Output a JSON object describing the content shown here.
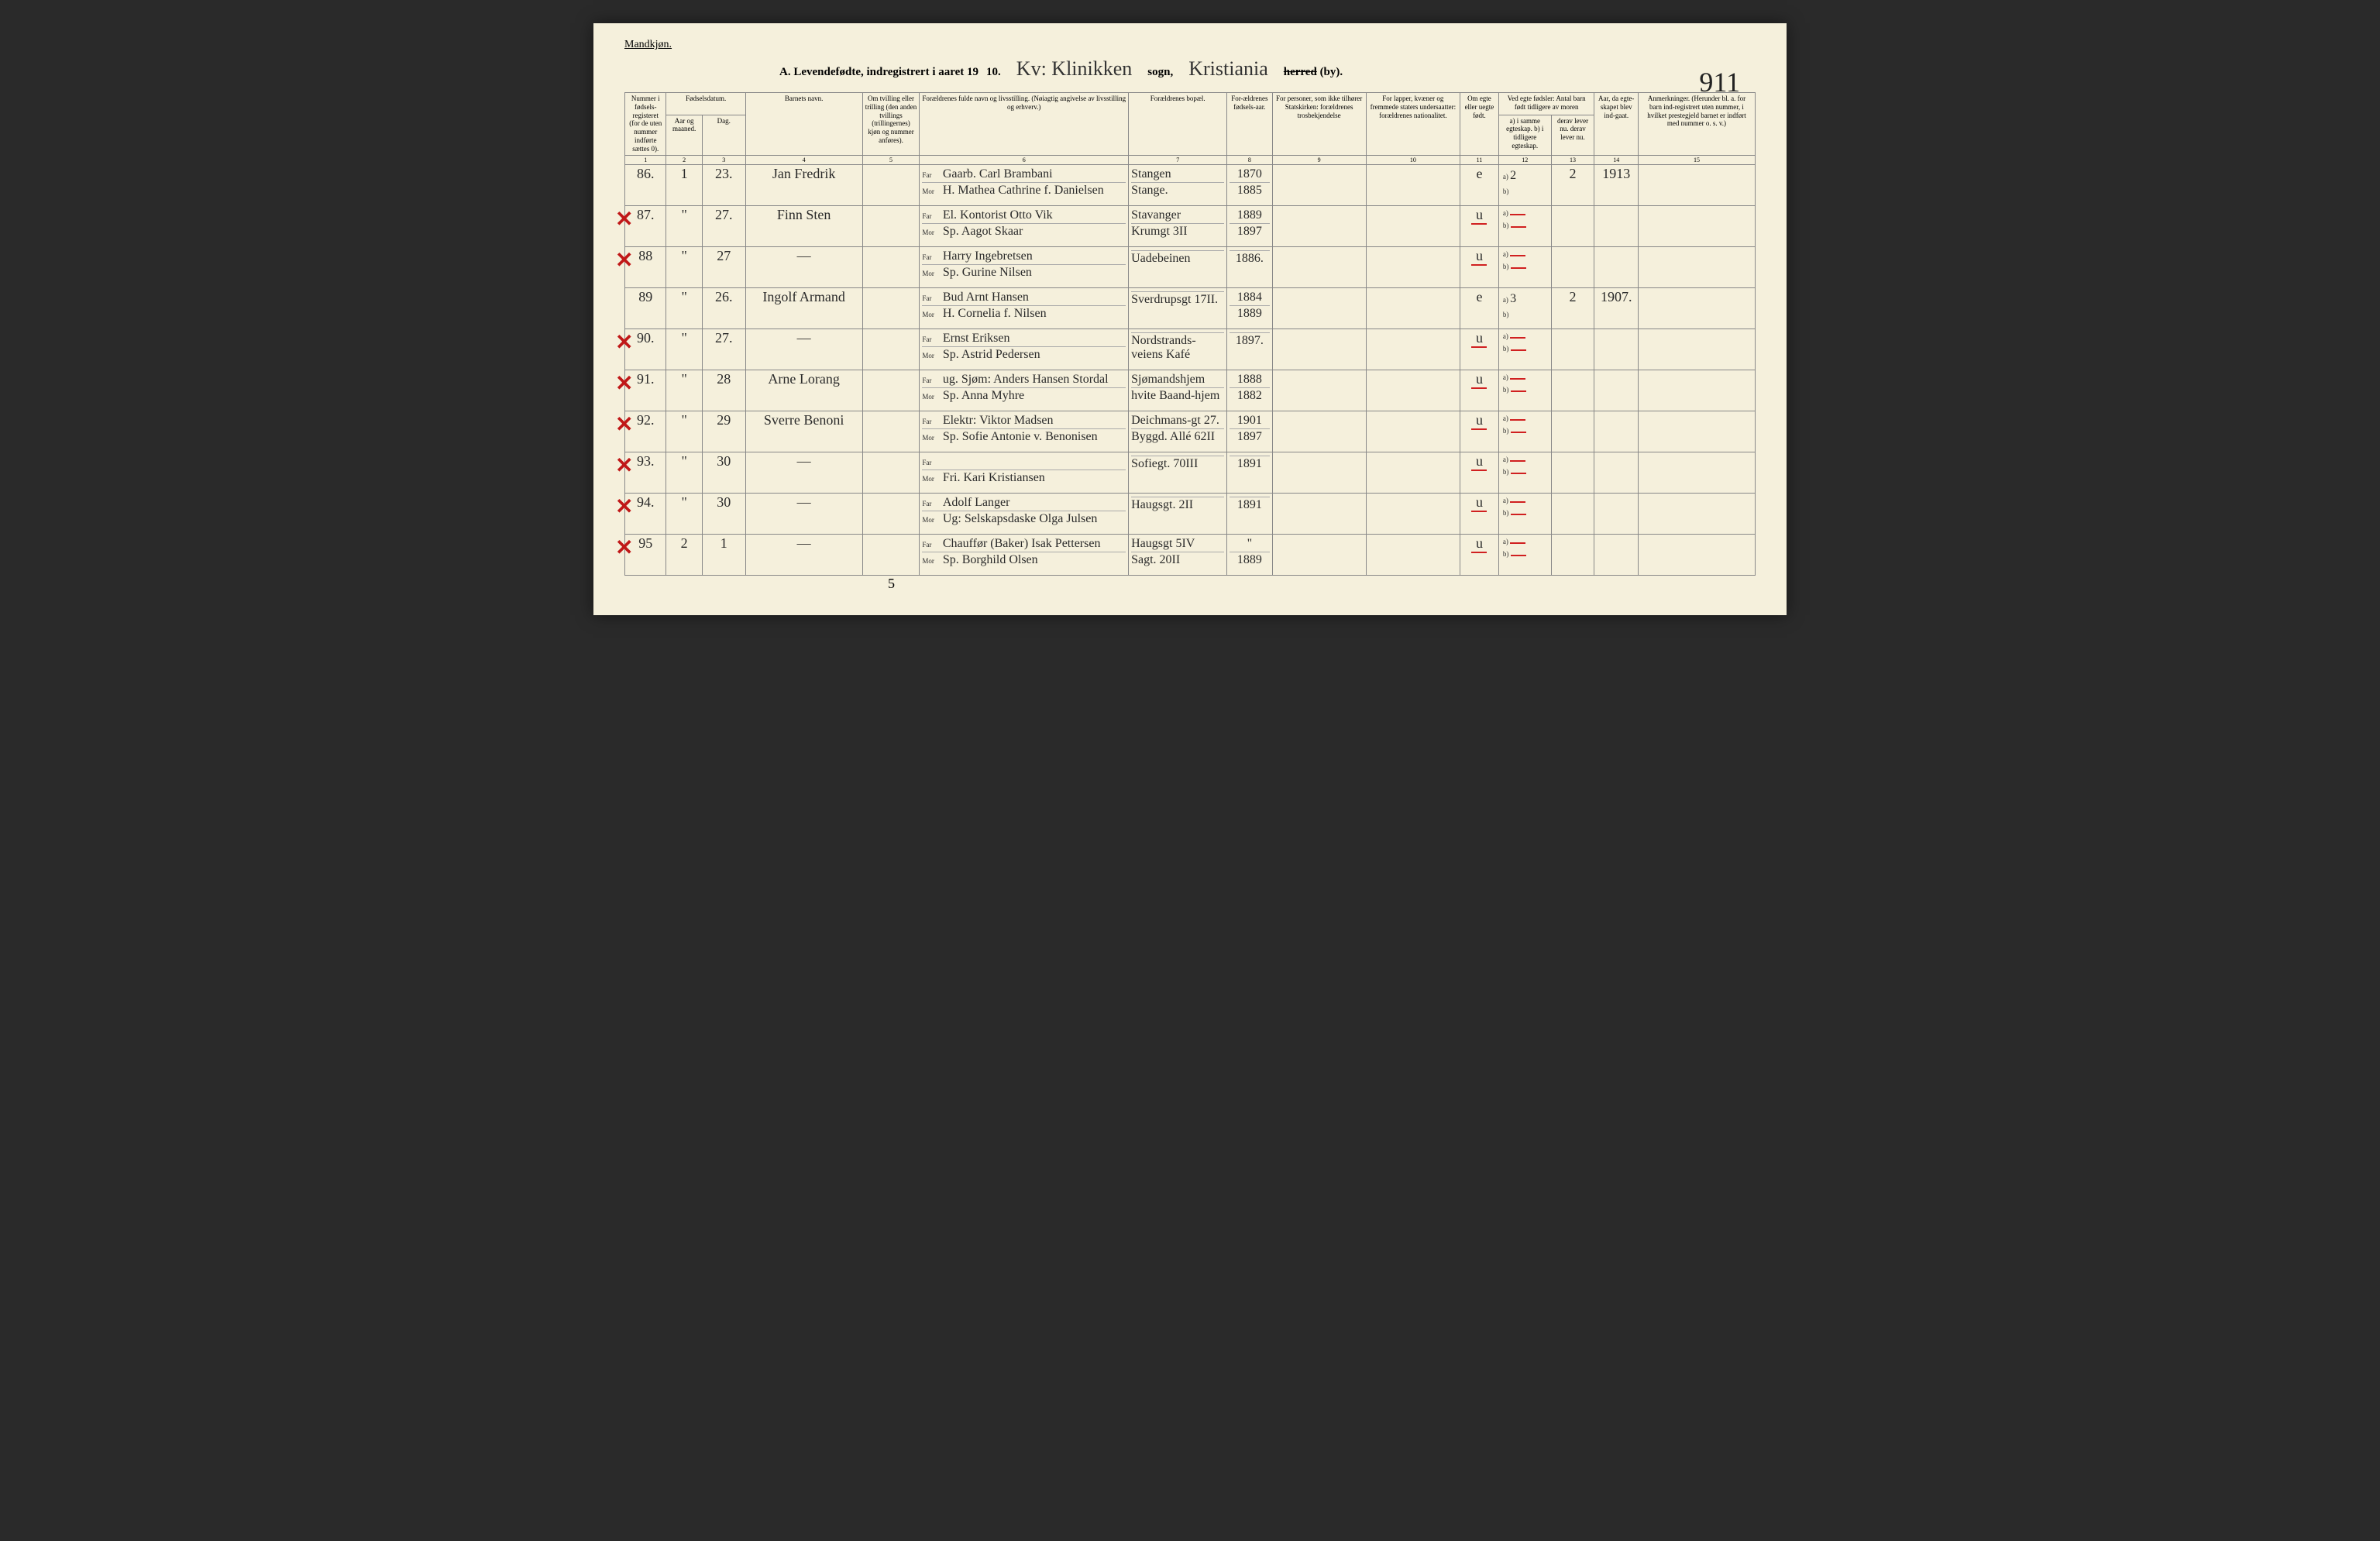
{
  "header": {
    "top_left": "Mandkjøn.",
    "title_prefix": "A.  Levendefødte, indregistrert i aaret 19",
    "year_suffix": "10.",
    "sogn_script": "Kv: Klinikken",
    "sogn_label": "sogn,",
    "herred_script": "Kristiania",
    "herred_label_strike": "herred",
    "herred_label_rest": " (by).",
    "page_number": "911"
  },
  "columns": {
    "c1": "Nummer i fødsels-registeret (for de uten nummer indførte sættes 0).",
    "c2a": "Fødselsdatum.",
    "c2": "Aar og maaned.",
    "c3": "Dag.",
    "c4": "Barnets navn.",
    "c5": "Om tvilling eller trilling (den anden tvillings (trillingernes) kjøn og nummer anføres).",
    "c6": "Forældrenes fulde navn og livsstilling. (Nøiagtig angivelse av livsstilling og erhverv.)",
    "c7": "Forældrenes bopæl.",
    "c8": "For-ældrenes fødsels-aar.",
    "c9": "For personer, som ikke tilhører Statskirken: forældrenes trosbekjendelse",
    "c10": "For lapper, kvæner og fremmede staters undersaatter: forældrenes nationalitet.",
    "c11": "Om egte eller uegte født.",
    "c12top": "Ved egte fødsler: Antal barn født tidligere av moren",
    "c12": "a) i samme egteskap. b) i tidligere egteskap.",
    "c13": "derav lever nu. derav lever nu.",
    "c14": "Aar, da egte-skapet blev ind-gaat.",
    "c15": "Anmerkninger. (Herunder bl. a. for barn ind-registrert uten nummer, i hvilket prestegjeld barnet er indført med nummer o. s. v.)"
  },
  "colnums": [
    "1",
    "2",
    "3",
    "4",
    "5",
    "6",
    "7",
    "8",
    "9",
    "10",
    "11",
    "12",
    "13",
    "14",
    "15"
  ],
  "rows": [
    {
      "x": false,
      "num": "86.",
      "mnd": "1",
      "dag": "23.",
      "navn": "Jan Fredrik",
      "far": "Gaarb. Carl Brambani",
      "mor": "H. Mathea Cathrine f. Danielsen",
      "bopel_far": "Stangen",
      "bopel_mor": "Stange.",
      "aar_far": "1870",
      "aar_mor": "1885",
      "egte": "e",
      "c12a": "2",
      "c13": "2",
      "c14": "1913"
    },
    {
      "x": true,
      "num": "87.",
      "mnd": "\"",
      "dag": "27.",
      "navn": "Finn Sten",
      "far": "El. Kontorist Otto Vik",
      "mor": "Sp. Aagot Skaar",
      "bopel_far": "Stavanger",
      "bopel_mor": "Krumgt 3II",
      "aar_far": "1889",
      "aar_mor": "1897",
      "egte": "u",
      "red": true
    },
    {
      "x": true,
      "num": "88",
      "mnd": "\"",
      "dag": "27",
      "navn": "—",
      "far": "Harry Ingebretsen",
      "mor": "Sp. Gurine Nilsen",
      "bopel_far": "",
      "bopel_mor": "Uadebeinen",
      "aar_far": "",
      "aar_mor": "1886.",
      "egte": "u",
      "red": true
    },
    {
      "x": false,
      "num": "89",
      "mnd": "\"",
      "dag": "26.",
      "navn": "Ingolf Armand",
      "far": "Bud Arnt Hansen",
      "mor": "H. Cornelia f. Nilsen",
      "bopel_far": "",
      "bopel_mor": "Sverdrupsgt 17II.",
      "aar_far": "1884",
      "aar_mor": "1889",
      "egte": "e",
      "c12a": "3",
      "c13": "2",
      "c14": "1907."
    },
    {
      "x": true,
      "num": "90.",
      "mnd": "\"",
      "dag": "27.",
      "navn": "—",
      "far": "Ernst Eriksen",
      "mor": "Sp. Astrid Pedersen",
      "bopel_far": "",
      "bopel_mor": "Nordstrands-veiens Kafé",
      "aar_far": "",
      "aar_mor": "1897.",
      "egte": "u",
      "red": true
    },
    {
      "x": true,
      "num": "91.",
      "mnd": "\"",
      "dag": "28",
      "navn": "Arne Lorang",
      "far": "ug. Sjøm: Anders Hansen Stordal",
      "mor": "Sp. Anna Myhre",
      "bopel_far": "Sjømandshjem",
      "bopel_mor": "hvite Baand-hjem",
      "aar_far": "1888",
      "aar_mor": "1882",
      "egte": "u",
      "red": true
    },
    {
      "x": true,
      "num": "92.",
      "mnd": "\"",
      "dag": "29",
      "navn": "Sverre Benoni",
      "far": "Elektr: Viktor Madsen",
      "mor": "Sp. Sofie Antonie v. Benonisen",
      "bopel_far": "Deichmans-gt 27.",
      "bopel_mor": "Byggd. Allé 62II",
      "aar_far": "1901",
      "aar_mor": "1897",
      "egte": "u",
      "red": true
    },
    {
      "x": true,
      "num": "93.",
      "mnd": "\"",
      "dag": "30",
      "navn": "—",
      "far": "",
      "mor": "Fri. Kari Kristiansen",
      "bopel_far": "",
      "bopel_mor": "Sofiegt. 70III",
      "aar_far": "",
      "aar_mor": "1891",
      "egte": "u",
      "red": true
    },
    {
      "x": true,
      "num": "94.",
      "mnd": "\"",
      "dag": "30",
      "navn": "—",
      "far": "Adolf Langer",
      "mor": "Ug: Selskapsdaske Olga Julsen",
      "bopel_far": "",
      "bopel_mor": "Haugsgt. 2II",
      "aar_far": "",
      "aar_mor": "1891",
      "egte": "u",
      "red": true
    },
    {
      "x": true,
      "num": "95",
      "mnd": "2",
      "dag": "1",
      "navn": "—",
      "far": "Chauffør (Baker) Isak Pettersen",
      "mor": "Sp. Borghild Olsen",
      "bopel_far": "Haugsgt 5IV",
      "bopel_mor": "Sagt. 20II",
      "aar_far": "\"",
      "aar_mor": "1889",
      "egte": "u",
      "red": true
    }
  ],
  "footer_5": "5"
}
